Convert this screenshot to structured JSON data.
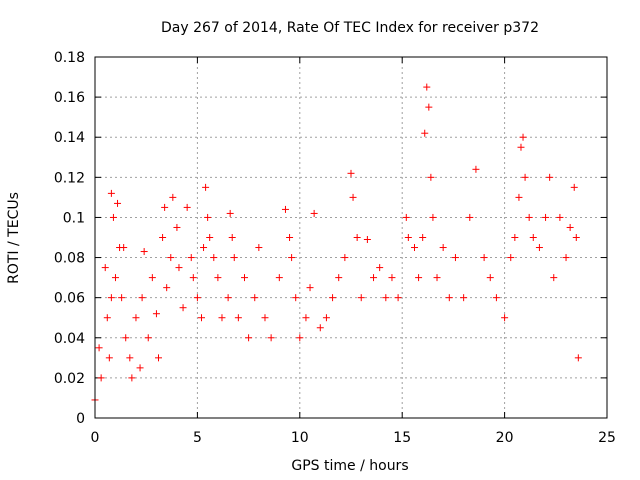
{
  "chart_data": {
    "type": "scatter",
    "title": "Day 267 of 2014, Rate Of TEC Index for receiver p372",
    "xlabel": "GPS time / hours",
    "ylabel": "ROTI / TECUs",
    "xlim": [
      0,
      25
    ],
    "ylim": [
      0,
      0.18
    ],
    "x_ticks": [
      0,
      5,
      10,
      15,
      20,
      25
    ],
    "y_ticks": [
      0,
      0.02,
      0.04,
      0.06,
      0.08,
      0.1,
      0.12,
      0.14,
      0.16,
      0.18
    ],
    "x_tick_labels": [
      "0",
      "5",
      "10",
      "15",
      "20",
      "25"
    ],
    "y_tick_labels": [
      "0",
      "0.02",
      "0.04",
      "0.06",
      "0.08",
      "0.1",
      "0.12",
      "0.14",
      "0.16",
      "0.18"
    ],
    "grid": true,
    "marker": "+",
    "marker_color": "#ff0000",
    "series": [
      {
        "points": [
          [
            0.0,
            0.009
          ],
          [
            0.2,
            0.035
          ],
          [
            0.3,
            0.02
          ],
          [
            0.5,
            0.075
          ],
          [
            0.6,
            0.05
          ],
          [
            0.7,
            0.03
          ],
          [
            0.8,
            0.06
          ],
          [
            0.8,
            0.112
          ],
          [
            0.9,
            0.1
          ],
          [
            1.0,
            0.07
          ],
          [
            1.1,
            0.107
          ],
          [
            1.2,
            0.085
          ],
          [
            1.3,
            0.06
          ],
          [
            1.4,
            0.085
          ],
          [
            1.5,
            0.04
          ],
          [
            1.7,
            0.03
          ],
          [
            1.8,
            0.02
          ],
          [
            2.0,
            0.05
          ],
          [
            2.2,
            0.025
          ],
          [
            2.3,
            0.06
          ],
          [
            2.4,
            0.083
          ],
          [
            2.6,
            0.04
          ],
          [
            2.8,
            0.07
          ],
          [
            3.0,
            0.052
          ],
          [
            3.1,
            0.03
          ],
          [
            3.3,
            0.09
          ],
          [
            3.4,
            0.105
          ],
          [
            3.5,
            0.065
          ],
          [
            3.7,
            0.08
          ],
          [
            3.8,
            0.11
          ],
          [
            4.0,
            0.095
          ],
          [
            4.1,
            0.075
          ],
          [
            4.3,
            0.055
          ],
          [
            4.5,
            0.105
          ],
          [
            4.7,
            0.08
          ],
          [
            4.8,
            0.07
          ],
          [
            5.0,
            0.06
          ],
          [
            5.2,
            0.05
          ],
          [
            5.3,
            0.085
          ],
          [
            5.4,
            0.115
          ],
          [
            5.5,
            0.1
          ],
          [
            5.6,
            0.09
          ],
          [
            5.8,
            0.08
          ],
          [
            6.0,
            0.07
          ],
          [
            6.2,
            0.05
          ],
          [
            6.5,
            0.06
          ],
          [
            6.6,
            0.102
          ],
          [
            6.7,
            0.09
          ],
          [
            6.8,
            0.08
          ],
          [
            7.0,
            0.05
          ],
          [
            7.3,
            0.07
          ],
          [
            7.5,
            0.04
          ],
          [
            7.8,
            0.06
          ],
          [
            8.0,
            0.085
          ],
          [
            8.3,
            0.05
          ],
          [
            8.6,
            0.04
          ],
          [
            9.0,
            0.07
          ],
          [
            9.3,
            0.104
          ],
          [
            9.5,
            0.09
          ],
          [
            9.6,
            0.08
          ],
          [
            9.8,
            0.06
          ],
          [
            10.0,
            0.04
          ],
          [
            10.3,
            0.05
          ],
          [
            10.5,
            0.065
          ],
          [
            10.7,
            0.102
          ],
          [
            11.0,
            0.045
          ],
          [
            11.3,
            0.05
          ],
          [
            11.6,
            0.06
          ],
          [
            11.9,
            0.07
          ],
          [
            12.2,
            0.08
          ],
          [
            12.5,
            0.122
          ],
          [
            12.6,
            0.11
          ],
          [
            12.8,
            0.09
          ],
          [
            13.0,
            0.06
          ],
          [
            13.3,
            0.089
          ],
          [
            13.6,
            0.07
          ],
          [
            13.9,
            0.075
          ],
          [
            14.2,
            0.06
          ],
          [
            14.5,
            0.07
          ],
          [
            14.8,
            0.06
          ],
          [
            15.2,
            0.1
          ],
          [
            15.3,
            0.09
          ],
          [
            15.6,
            0.085
          ],
          [
            15.8,
            0.07
          ],
          [
            16.0,
            0.09
          ],
          [
            16.1,
            0.142
          ],
          [
            16.2,
            0.165
          ],
          [
            16.3,
            0.155
          ],
          [
            16.4,
            0.12
          ],
          [
            16.5,
            0.1
          ],
          [
            16.7,
            0.07
          ],
          [
            17.0,
            0.085
          ],
          [
            17.3,
            0.06
          ],
          [
            17.6,
            0.08
          ],
          [
            18.0,
            0.06
          ],
          [
            18.3,
            0.1
          ],
          [
            18.6,
            0.124
          ],
          [
            19.0,
            0.08
          ],
          [
            19.3,
            0.07
          ],
          [
            19.6,
            0.06
          ],
          [
            20.0,
            0.05
          ],
          [
            20.3,
            0.08
          ],
          [
            20.5,
            0.09
          ],
          [
            20.7,
            0.11
          ],
          [
            20.8,
            0.135
          ],
          [
            20.9,
            0.14
          ],
          [
            21.0,
            0.12
          ],
          [
            21.2,
            0.1
          ],
          [
            21.4,
            0.09
          ],
          [
            21.7,
            0.085
          ],
          [
            22.0,
            0.1
          ],
          [
            22.2,
            0.12
          ],
          [
            22.4,
            0.07
          ],
          [
            22.7,
            0.1
          ],
          [
            23.0,
            0.08
          ],
          [
            23.2,
            0.095
          ],
          [
            23.4,
            0.115
          ],
          [
            23.5,
            0.09
          ],
          [
            23.6,
            0.03
          ]
        ]
      }
    ]
  }
}
